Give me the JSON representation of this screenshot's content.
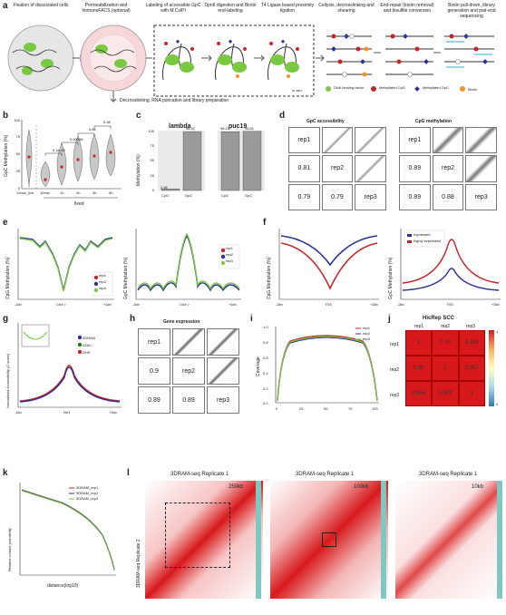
{
  "panel_letters": {
    "a": "a",
    "b": "b",
    "c": "c",
    "d": "d",
    "e": "e",
    "f": "f",
    "g": "g",
    "h": "h",
    "i": "i",
    "j": "j",
    "k": "k",
    "l": "l"
  },
  "workflow": {
    "steps": [
      "Fixation of dissociated cells",
      "Permeabilization and ImmunoFACS (optional)",
      "Labeling of accessible GpC with M.CviPI",
      "DpnII digestion and Biotin end-labeling",
      "T4 Ligase based proximity ligation",
      "Cellysis, decrosslinking and shearing",
      "End-repair (biotin removal) and bisulfite conversion",
      "Biotin pull-down, library generation and pair-end sequencing"
    ],
    "in_situ": "in-situ",
    "side_step": "Decrosslinking, RNA purication and library preparation",
    "legend": [
      "DNA binding factor",
      "Methylated CpG",
      "Methylated GpC",
      "Biotin"
    ]
  },
  "b": {
    "ylabel": "GpC Methylation (%)",
    "yticks": [
      "100",
      "75",
      "50",
      "25",
      "0"
    ],
    "xticks": [
      "10min_live",
      "10min",
      "1h",
      "2h",
      "3h",
      "4h"
    ],
    "xgroup": "fixed",
    "pvals": [
      "5.1e-05",
      "0.00056",
      "0.86",
      "0.38"
    ]
  },
  "c": {
    "ylabel": "Methylation (%)",
    "yticks": [
      "100",
      "75",
      "50",
      "25",
      "0"
    ],
    "charts": [
      {
        "title": "lambda",
        "categories": [
          "CpG",
          "GpC"
        ],
        "values": [
          2.58,
          98.42
        ],
        "labels": [
          "2.58",
          "98.42"
        ]
      },
      {
        "title": "puc19",
        "categories": [
          "CpG",
          "GpC"
        ],
        "values": [
          98.21,
          98.81
        ],
        "labels": [
          "98.21",
          "98.81"
        ]
      }
    ]
  },
  "d": {
    "left": {
      "title": "GpC accessibility",
      "diag": [
        "rep1",
        "rep2",
        "rep3"
      ],
      "r": [
        "0.81",
        "0.79",
        "0.79"
      ]
    },
    "right": {
      "title": "CpG methylation",
      "diag": [
        "rep1",
        "rep2",
        "rep3"
      ],
      "r": [
        "0.89",
        "0.89",
        "0.88"
      ]
    }
  },
  "e": {
    "left": {
      "ylabel": "CpG Methylation (%)",
      "xticks": [
        "-1kb",
        "Ctcf->",
        "+1kb"
      ],
      "legend": [
        "rep1",
        "rep2",
        "rep3"
      ]
    },
    "right": {
      "ylabel": "GpC Methylation (%)",
      "xticks": [
        "-1kb",
        "Ctcf->",
        "+1kb"
      ],
      "legend": [
        "rep1",
        "rep2",
        "rep3"
      ]
    }
  },
  "f": {
    "left": {
      "ylabel": "CpG Methylation (%)",
      "xticks": [
        "-2kb",
        "TSS",
        "+2kb"
      ]
    },
    "right": {
      "ylabel": "GpC Methylation (%)",
      "xticks": [
        "-2kb",
        "TSS",
        "+2kb"
      ],
      "legend": [
        "expressed",
        "highly expressed"
      ]
    }
  },
  "g": {
    "ylabel": "Normalized Accessibility (Z-score)",
    "xticks": [
      "-1kb",
      "Nrf1",
      "+1kb"
    ],
    "legend": [
      "3DRAM",
      "ATAC",
      "DHS"
    ]
  },
  "h": {
    "title": "Gene expression",
    "diag": [
      "rep1",
      "rep2",
      "rep3"
    ],
    "r": [
      "0.9",
      "0.89",
      "0.89"
    ]
  },
  "i": {
    "ylabel": "Coverage",
    "xticks": [
      "0",
      "25",
      "50",
      "75",
      "100"
    ],
    "yticks": [
      "1.0",
      "0.8",
      "0.6",
      "0.4",
      "0.2",
      "0.0"
    ],
    "legend": [
      "rep1",
      "rep2",
      "rep3"
    ]
  },
  "j": {
    "title": "HicRep SCC",
    "cols": [
      "rep1",
      "rep2",
      "rep3"
    ],
    "rows": [
      "rep1",
      "rep2",
      "rep3"
    ],
    "values": [
      [
        "1",
        "0.95",
        "0.954"
      ],
      [
        "0.95",
        "1",
        "0.957"
      ],
      [
        "0.954",
        "0.957",
        "1"
      ]
    ],
    "scale": [
      "1",
      "0"
    ]
  },
  "k": {
    "ylabel": "Relative contact probability",
    "xlabel": "distance(log10)",
    "legend": [
      "3DRAM_rep1",
      "3DRAM_rep2",
      "3DRAM_rep3"
    ]
  },
  "l": {
    "maps": [
      {
        "title": "3DRAM-seq Replicate 1",
        "res": "250kb"
      },
      {
        "title": "3DRAM-seq Replicate 1",
        "res": "100kb"
      },
      {
        "title": "3DRAM-seq Replicate 1",
        "res": "10kb"
      }
    ],
    "ylabel": "3DRAM-seq Replicate 2"
  },
  "colors": {
    "green": "#7ac943",
    "red": "#c1272d",
    "blue": "#2e3192",
    "orange": "#f7931e",
    "pink": "#f8d7da",
    "heat": "#d7191c"
  }
}
